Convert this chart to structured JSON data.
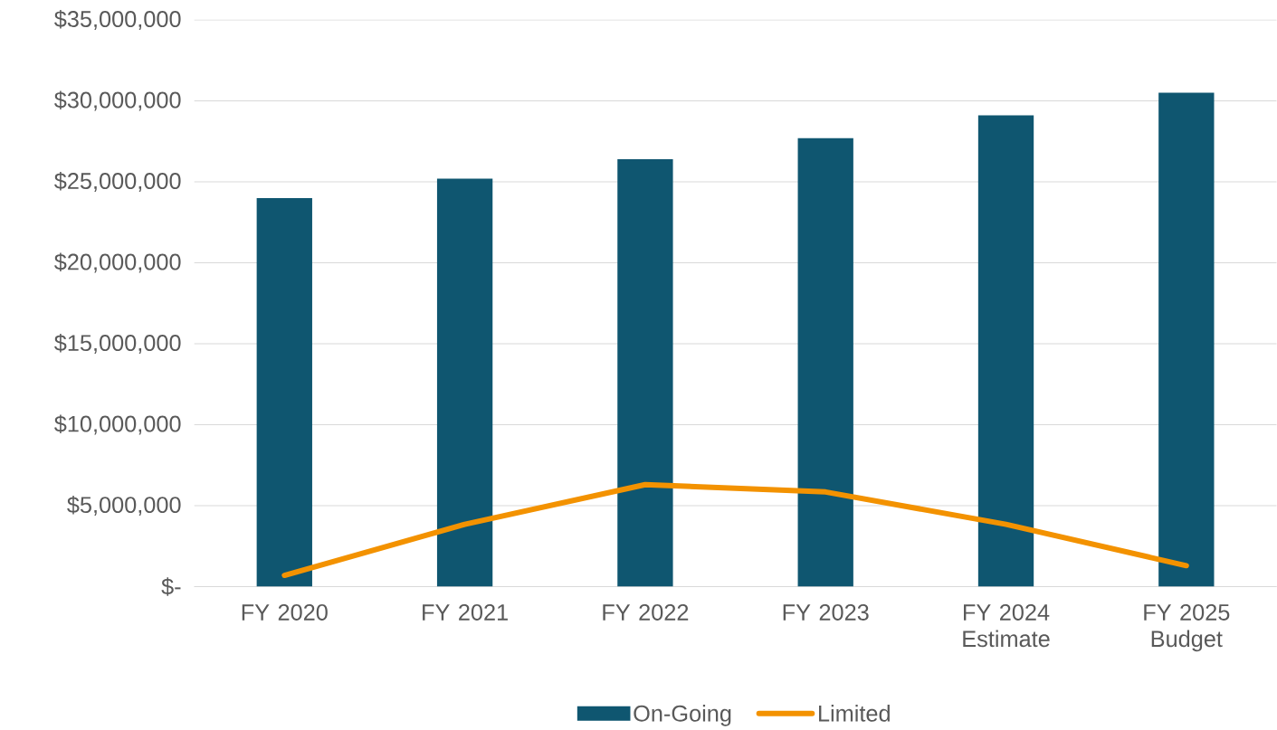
{
  "chart_data": {
    "type": "bar",
    "categories": [
      "FY 2020",
      "FY 2021",
      "FY 2022",
      "FY 2023",
      "FY 2024 Estimate",
      "FY 2025 Budget"
    ],
    "series": [
      {
        "name": "On-Going",
        "color": "#0f5670",
        "values": [
          24000000,
          25200000,
          26400000,
          27700000,
          29100000,
          30500000
        ]
      },
      {
        "name": "Limited",
        "type": "line",
        "color": "#f39200",
        "values": [
          700000,
          3850000,
          6300000,
          5850000,
          3850000,
          1300000
        ]
      }
    ],
    "ylim": [
      0,
      35000000
    ],
    "yticks": [
      {
        "value": 0,
        "label": "$-"
      },
      {
        "value": 5000000,
        "label": "$5,000,000"
      },
      {
        "value": 10000000,
        "label": "$10,000,000"
      },
      {
        "value": 15000000,
        "label": "$15,000,000"
      },
      {
        "value": 20000000,
        "label": "$20,000,000"
      },
      {
        "value": 25000000,
        "label": "$25,000,000"
      },
      {
        "value": 30000000,
        "label": "$30,000,000"
      },
      {
        "value": 35000000,
        "label": "$35,000,000"
      }
    ],
    "grid": "y",
    "legend": "bottom"
  }
}
